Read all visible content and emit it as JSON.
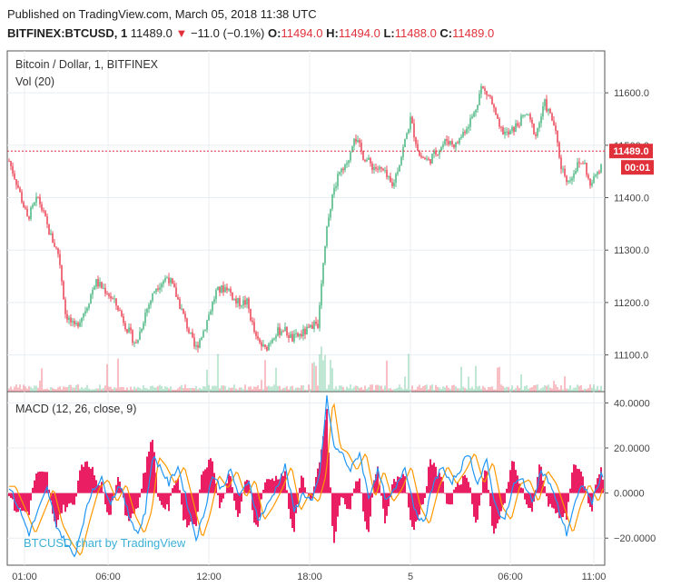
{
  "header": {
    "published": "Published on TradingView.com, March 05, 2018 11:38 UTC",
    "symbol": "BITFINEX:BTCUSD, 1",
    "last": "11489.0",
    "change": "−11.0 (−0.1%)",
    "o_label": "O:",
    "o_value": "11494.0",
    "h_label": "H:",
    "h_value": "11494.0",
    "l_label": "L:",
    "l_value": "11488.0",
    "c_label": "C:",
    "c_value": "11489.0"
  },
  "chart_data": [
    {
      "type": "candlestick",
      "title": "Bitcoin / Dollar, 1, BITFINEX",
      "y_ticks": [
        "11600.0",
        "11500.0",
        "11400.0",
        "11300.0",
        "11200.0",
        "11100.0"
      ],
      "ylim": [
        11030,
        11680
      ],
      "last_price_label": "11489.0",
      "countdown_label": "00:01",
      "last_price": 11489,
      "x_ticks": [
        "01:00",
        "06:00",
        "12:00",
        "18:00",
        "5",
        "06:00",
        "11:00"
      ],
      "price_path": [
        [
          0,
          11470
        ],
        [
          10,
          11420
        ],
        [
          20,
          11360
        ],
        [
          32,
          11400
        ],
        [
          45,
          11330
        ],
        [
          55,
          11290
        ],
        [
          62,
          11180
        ],
        [
          72,
          11150
        ],
        [
          85,
          11190
        ],
        [
          95,
          11240
        ],
        [
          108,
          11220
        ],
        [
          120,
          11190
        ],
        [
          130,
          11150
        ],
        [
          140,
          11120
        ],
        [
          150,
          11180
        ],
        [
          162,
          11230
        ],
        [
          175,
          11250
        ],
        [
          185,
          11210
        ],
        [
          195,
          11160
        ],
        [
          205,
          11110
        ],
        [
          215,
          11150
        ],
        [
          228,
          11220
        ],
        [
          240,
          11230
        ],
        [
          250,
          11200
        ],
        [
          262,
          11200
        ],
        [
          272,
          11130
        ],
        [
          282,
          11110
        ],
        [
          292,
          11140
        ],
        [
          302,
          11150
        ],
        [
          312,
          11130
        ],
        [
          322,
          11140
        ],
        [
          332,
          11150
        ],
        [
          340,
          11160
        ],
        [
          346,
          11280
        ],
        [
          352,
          11370
        ],
        [
          362,
          11440
        ],
        [
          372,
          11460
        ],
        [
          380,
          11520
        ],
        [
          390,
          11480
        ],
        [
          400,
          11460
        ],
        [
          412,
          11450
        ],
        [
          422,
          11420
        ],
        [
          432,
          11480
        ],
        [
          442,
          11550
        ],
        [
          452,
          11480
        ],
        [
          462,
          11470
        ],
        [
          472,
          11490
        ],
        [
          482,
          11510
        ],
        [
          492,
          11500
        ],
        [
          502,
          11530
        ],
        [
          512,
          11560
        ],
        [
          520,
          11610
        ],
        [
          530,
          11590
        ],
        [
          540,
          11530
        ],
        [
          550,
          11520
        ],
        [
          560,
          11540
        ],
        [
          570,
          11560
        ],
        [
          580,
          11520
        ],
        [
          590,
          11580
        ],
        [
          600,
          11540
        ],
        [
          608,
          11460
        ],
        [
          616,
          11430
        ],
        [
          625,
          11460
        ],
        [
          633,
          11470
        ],
        [
          640,
          11420
        ],
        [
          648,
          11450
        ],
        [
          657,
          11480
        ],
        [
          664,
          11490
        ]
      ]
    },
    {
      "type": "volume",
      "title": "Vol (20)"
    },
    {
      "type": "line",
      "title": "MACD (12, 26, close, 9)",
      "y_ticks": [
        "40.0000",
        "20.0000",
        "0.0000",
        "−20.0000"
      ],
      "ylim": [
        -32,
        45
      ],
      "macd_path": [
        [
          0,
          3
        ],
        [
          12,
          -8
        ],
        [
          22,
          -18
        ],
        [
          32,
          -8
        ],
        [
          42,
          2
        ],
        [
          52,
          -14
        ],
        [
          62,
          -22
        ],
        [
          72,
          -28
        ],
        [
          82,
          -12
        ],
        [
          92,
          2
        ],
        [
          102,
          6
        ],
        [
          112,
          -4
        ],
        [
          122,
          4
        ],
        [
          132,
          -10
        ],
        [
          142,
          -18
        ],
        [
          150,
          -8
        ],
        [
          158,
          16
        ],
        [
          166,
          12
        ],
        [
          176,
          4
        ],
        [
          186,
          12
        ],
        [
          196,
          -4
        ],
        [
          206,
          -20
        ],
        [
          214,
          -10
        ],
        [
          224,
          8
        ],
        [
          234,
          2
        ],
        [
          244,
          10
        ],
        [
          254,
          -2
        ],
        [
          264,
          6
        ],
        [
          274,
          -12
        ],
        [
          284,
          -6
        ],
        [
          294,
          2
        ],
        [
          304,
          12
        ],
        [
          314,
          -8
        ],
        [
          324,
          0
        ],
        [
          334,
          -4
        ],
        [
          342,
          8
        ],
        [
          350,
          42
        ],
        [
          358,
          20
        ],
        [
          366,
          18
        ],
        [
          376,
          10
        ],
        [
          386,
          18
        ],
        [
          396,
          -2
        ],
        [
          406,
          10
        ],
        [
          416,
          -4
        ],
        [
          426,
          2
        ],
        [
          436,
          12
        ],
        [
          446,
          -6
        ],
        [
          456,
          -14
        ],
        [
          466,
          2
        ],
        [
          476,
          12
        ],
        [
          486,
          4
        ],
        [
          496,
          10
        ],
        [
          506,
          18
        ],
        [
          516,
          4
        ],
        [
          526,
          14
        ],
        [
          536,
          -6
        ],
        [
          546,
          -12
        ],
        [
          556,
          4
        ],
        [
          566,
          6
        ],
        [
          576,
          -4
        ],
        [
          586,
          10
        ],
        [
          596,
          4
        ],
        [
          606,
          -8
        ],
        [
          614,
          -18
        ],
        [
          622,
          -6
        ],
        [
          632,
          4
        ],
        [
          642,
          -4
        ],
        [
          652,
          8
        ],
        [
          664,
          2
        ]
      ]
    }
  ],
  "watermark": "BTCUSD chart by TradingView",
  "colors": {
    "up": "#53b987",
    "down": "#eb4d5c",
    "macd": "#2196f3",
    "signal": "#ff9800",
    "hist": "#e91e63",
    "last_price": "#e0313b",
    "grid": "#e8edf2"
  }
}
